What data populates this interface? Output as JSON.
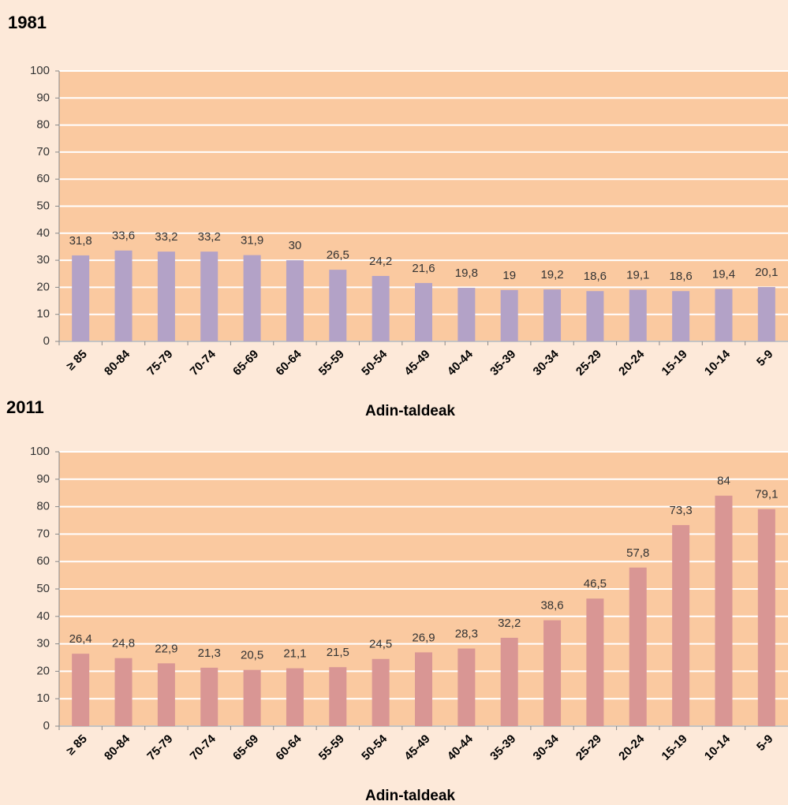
{
  "chart_data": [
    {
      "type": "bar",
      "title": "1981",
      "x_label": "Adin-taldeak",
      "categories": [
        "≥ 85",
        "80-84",
        "75-79",
        "70-74",
        "65-69",
        "60-64",
        "55-59",
        "50-54",
        "45-49",
        "40-44",
        "35-39",
        "30-34",
        "25-29",
        "20-24",
        "15-19",
        "10-14",
        "5-9"
      ],
      "values": [
        31.8,
        33.6,
        33.2,
        33.2,
        31.9,
        30,
        26.5,
        24.2,
        21.6,
        19.8,
        19,
        19.2,
        18.6,
        19.1,
        18.6,
        19.4,
        20.1
      ],
      "value_labels": [
        "31,8",
        "33,6",
        "33,2",
        "33,2",
        "31,9",
        "30",
        "26,5",
        "24,2",
        "21,6",
        "19,8",
        "19",
        "19,2",
        "18,6",
        "19,1",
        "18,6",
        "19,4",
        "20,1"
      ],
      "color": "#b3a2c7",
      "ylim": [
        0,
        100
      ],
      "yticks": [
        0,
        10,
        20,
        30,
        40,
        50,
        60,
        70,
        80,
        90,
        100
      ],
      "grid": true
    },
    {
      "type": "bar",
      "title": "2011",
      "x_label": "Adin-taldeak",
      "categories": [
        "≥ 85",
        "80-84",
        "75-79",
        "70-74",
        "65-69",
        "60-64",
        "55-59",
        "50-54",
        "45-49",
        "40-44",
        "35-39",
        "30-34",
        "25-29",
        "20-24",
        "15-19",
        "10-14",
        "5-9"
      ],
      "values": [
        26.4,
        24.8,
        22.9,
        21.3,
        20.5,
        21.1,
        21.5,
        24.5,
        26.9,
        28.3,
        32.2,
        38.6,
        46.5,
        57.8,
        73.3,
        84,
        79.1
      ],
      "value_labels": [
        "26,4",
        "24,8",
        "22,9",
        "21,3",
        "20,5",
        "21,1",
        "21,5",
        "24,5",
        "26,9",
        "28,3",
        "32,2",
        "38,6",
        "46,5",
        "57,8",
        "73,3",
        "84",
        "79,1"
      ],
      "color": "#d99694",
      "ylim": [
        0,
        100
      ],
      "yticks": [
        0,
        10,
        20,
        30,
        40,
        50,
        60,
        70,
        80,
        90,
        100
      ],
      "grid": true
    }
  ]
}
